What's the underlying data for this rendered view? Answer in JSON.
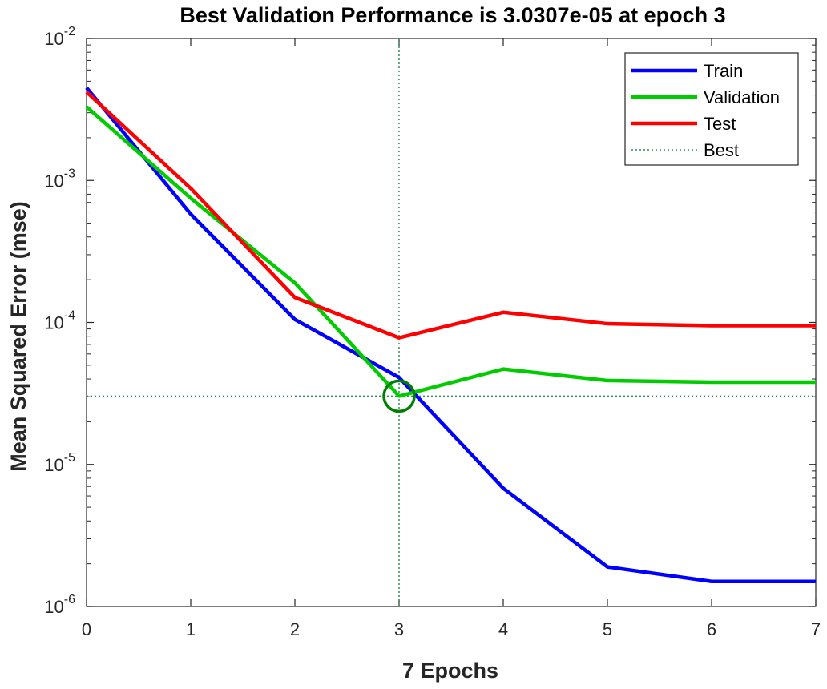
{
  "chart_data": {
    "type": "line",
    "title": "Best Validation Performance is 3.0307e-05 at epoch 3",
    "xlabel": "7 Epochs",
    "ylabel": "Mean Squared Error  (mse)",
    "yscale": "log",
    "xlim": [
      0,
      7
    ],
    "ylim": [
      1e-06,
      0.01
    ],
    "xticks": [
      "0",
      "1",
      "2",
      "3",
      "4",
      "5",
      "6",
      "7"
    ],
    "yticks": [
      {
        "base": "10",
        "exp": "-6"
      },
      {
        "base": "10",
        "exp": "-5"
      },
      {
        "base": "10",
        "exp": "-4"
      },
      {
        "base": "10",
        "exp": "-3"
      },
      {
        "base": "10",
        "exp": "-2"
      }
    ],
    "x": [
      0,
      1,
      2,
      3,
      4,
      5,
      6,
      7
    ],
    "series": [
      {
        "name": "Train",
        "color": "#0000ff",
        "values": [
          0.0045,
          0.00058,
          0.000105,
          4.1e-05,
          6.8e-06,
          1.9e-06,
          1.5e-06,
          1.5e-06
        ]
      },
      {
        "name": "Validation",
        "color": "#00cc00",
        "values": [
          0.0033,
          0.00075,
          0.00019,
          3.0307e-05,
          4.7e-05,
          3.9e-05,
          3.8e-05,
          3.8e-05
        ]
      },
      {
        "name": "Test",
        "color": "#ff0000",
        "values": [
          0.0042,
          0.00088,
          0.00015,
          7.8e-05,
          0.000118,
          9.8e-05,
          9.5e-05,
          9.5e-05
        ]
      }
    ],
    "best": {
      "name": "Best",
      "epoch": 3,
      "value": 3.0307e-05,
      "line_color": "#2f8f5f",
      "marker_color": "#008000"
    },
    "grid": false,
    "legend_position": "top-right"
  }
}
